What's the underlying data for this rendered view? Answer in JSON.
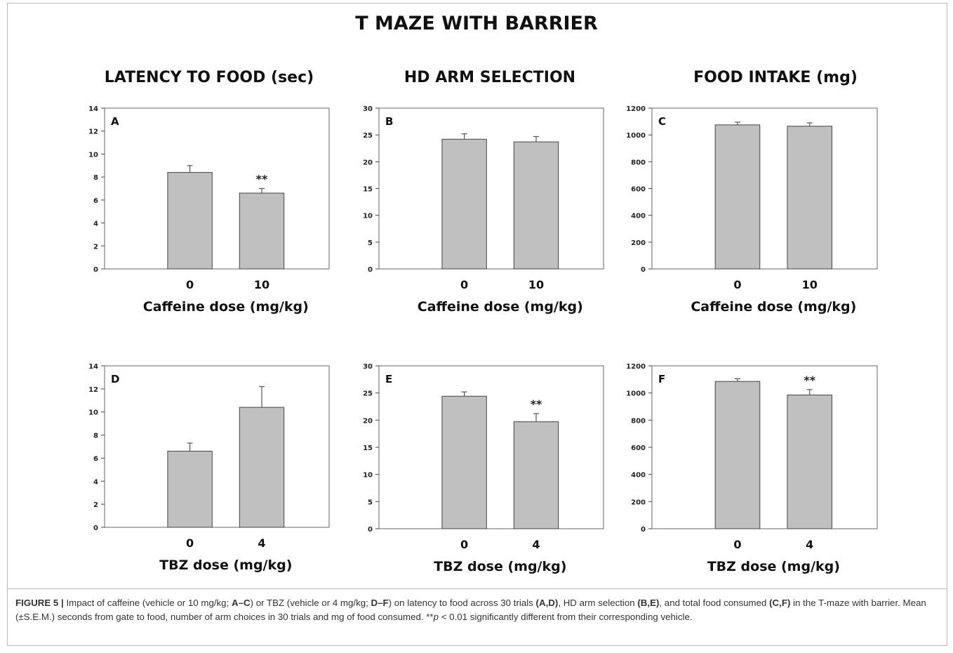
{
  "figure_title": "T MAZE WITH BARRIER",
  "column_titles": [
    "LATENCY TO FOOD (sec)",
    "HD ARM SELECTION",
    "FOOD INTAKE (mg)"
  ],
  "chart_data": [
    {
      "type": "bar",
      "panel": "A",
      "categories": [
        "0",
        "10"
      ],
      "values": [
        8.4,
        6.6
      ],
      "errors": [
        0.6,
        0.4
      ],
      "significance": [
        "",
        "**"
      ],
      "xlabel": "Caffeine dose (mg/kg)",
      "ylim": [
        0,
        14
      ],
      "yticks": [
        0,
        2,
        4,
        6,
        8,
        10,
        12,
        14
      ],
      "ytick_labels": [
        "0",
        "2",
        "4",
        "6",
        "8",
        "10",
        "12",
        "14"
      ],
      "bar_color": "#c0c0c0"
    },
    {
      "type": "bar",
      "panel": "B",
      "categories": [
        "0",
        "10"
      ],
      "values": [
        24.2,
        23.7
      ],
      "errors": [
        1.0,
        1.0
      ],
      "significance": [
        "",
        ""
      ],
      "xlabel": "Caffeine dose (mg/kg)",
      "ylim": [
        0,
        30
      ],
      "yticks": [
        0,
        5,
        10,
        15,
        20,
        25,
        30
      ],
      "ytick_labels": [
        "0",
        "5",
        "10",
        "15",
        "20",
        "25",
        "30"
      ],
      "bar_color": "#c0c0c0"
    },
    {
      "type": "bar",
      "panel": "C",
      "categories": [
        "0",
        "10"
      ],
      "values": [
        1075,
        1065
      ],
      "errors": [
        20,
        25
      ],
      "significance": [
        "",
        ""
      ],
      "xlabel": "Caffeine dose (mg/kg)",
      "ylim": [
        0,
        1200
      ],
      "yticks": [
        0,
        200,
        400,
        600,
        800,
        1000,
        1200
      ],
      "ytick_labels": [
        "0",
        "200",
        "400",
        "600",
        "800",
        "1000",
        "1200"
      ],
      "bar_color": "#c0c0c0"
    },
    {
      "type": "bar",
      "panel": "D",
      "categories": [
        "0",
        "4"
      ],
      "values": [
        6.6,
        10.4
      ],
      "errors": [
        0.7,
        1.8
      ],
      "significance": [
        "",
        ""
      ],
      "xlabel": "TBZ dose (mg/kg)",
      "ylim": [
        0,
        14
      ],
      "yticks": [
        0,
        2,
        4,
        6,
        8,
        10,
        12,
        14
      ],
      "ytick_labels": [
        "0",
        "2",
        "4",
        "6",
        "8",
        "10",
        "12",
        "14"
      ],
      "bar_color": "#c0c0c0"
    },
    {
      "type": "bar",
      "panel": "E",
      "categories": [
        "0",
        "4"
      ],
      "values": [
        24.4,
        19.7
      ],
      "errors": [
        0.8,
        1.5
      ],
      "significance": [
        "",
        "**"
      ],
      "xlabel": "TBZ dose (mg/kg)",
      "ylim": [
        0,
        30
      ],
      "yticks": [
        0,
        5,
        10,
        15,
        20,
        25,
        30
      ],
      "ytick_labels": [
        "0",
        "5",
        "10",
        "15",
        "20",
        "25",
        "30"
      ],
      "bar_color": "#c0c0c0"
    },
    {
      "type": "bar",
      "panel": "F",
      "categories": [
        "0",
        "4"
      ],
      "values": [
        1085,
        985
      ],
      "errors": [
        20,
        40
      ],
      "significance": [
        "",
        "**"
      ],
      "xlabel": "TBZ dose (mg/kg)",
      "ylim": [
        0,
        1200
      ],
      "yticks": [
        0,
        200,
        400,
        600,
        800,
        1000,
        1200
      ],
      "ytick_labels": [
        "0",
        "200",
        "400",
        "600",
        "800",
        "1000",
        "1200"
      ],
      "bar_color": "#c0c0c0"
    }
  ],
  "caption": {
    "label": "FIGURE 5 |",
    "text_1": " Impact of caffeine (vehicle or 10 mg/kg; ",
    "ref_1": "A–C",
    "text_2": ") or TBZ (vehicle or 4 mg/kg; ",
    "ref_2": "D–F",
    "text_3": ") on latency to food across 30 trials ",
    "ref_3": "(A,D)",
    "text_4": ", HD arm selection ",
    "ref_4": "(B,E)",
    "text_5": ", and total food consumed ",
    "ref_5": "(C,F)",
    "text_6": " in the T-maze with barrier. Mean (±S.E.M.) seconds from gate to food, number of arm choices in 30 trials and mg of food consumed. **",
    "p_symbol": "p",
    "text_7": " < 0.01 significantly different from their corresponding vehicle."
  }
}
